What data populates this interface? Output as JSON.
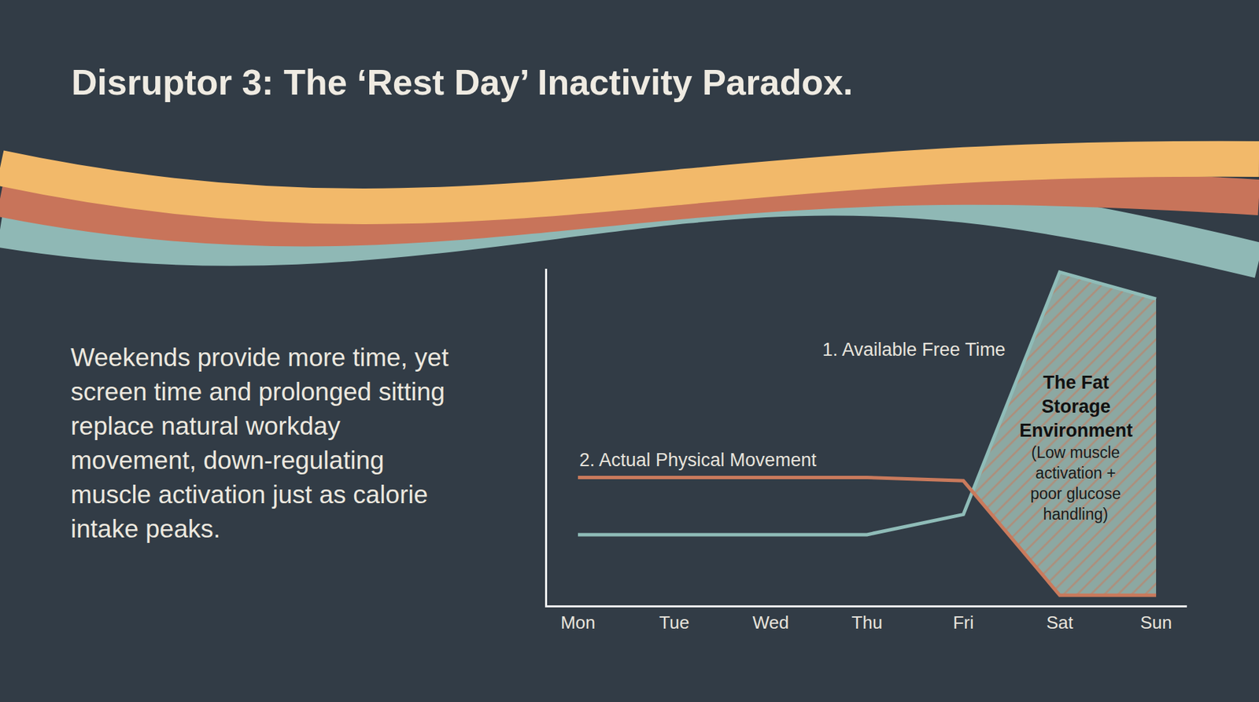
{
  "chart_data": {
    "type": "line",
    "title": "Disruptor 3: The ‘Rest Day’ Inactivity Paradox.",
    "subtitle": "Weekends provide more time, yet screen time and prolonged sitting replace natural workday movement, down-regulating muscle activation just as calorie intake peaks.",
    "categories": [
      "Mon",
      "Tue",
      "Wed",
      "Thu",
      "Fri",
      "Sat",
      "Sun"
    ],
    "series": [
      {
        "name": "1. Available Free Time",
        "color": "#8fbcb8",
        "values": [
          21,
          21,
          21,
          21,
          27,
          99,
          91
        ]
      },
      {
        "name": "2. Actual Physical Movement",
        "color": "#c97a5c",
        "values": [
          38,
          38,
          38,
          38,
          37,
          3,
          3
        ]
      }
    ],
    "ylim": [
      0,
      100
    ],
    "yticks": [],
    "tick_labels": "x",
    "grid": false,
    "annotations": [
      {
        "text": "The Fat Storage Environment",
        "detail": "(Low muscle activation + poor glucose handling)"
      }
    ]
  }
}
